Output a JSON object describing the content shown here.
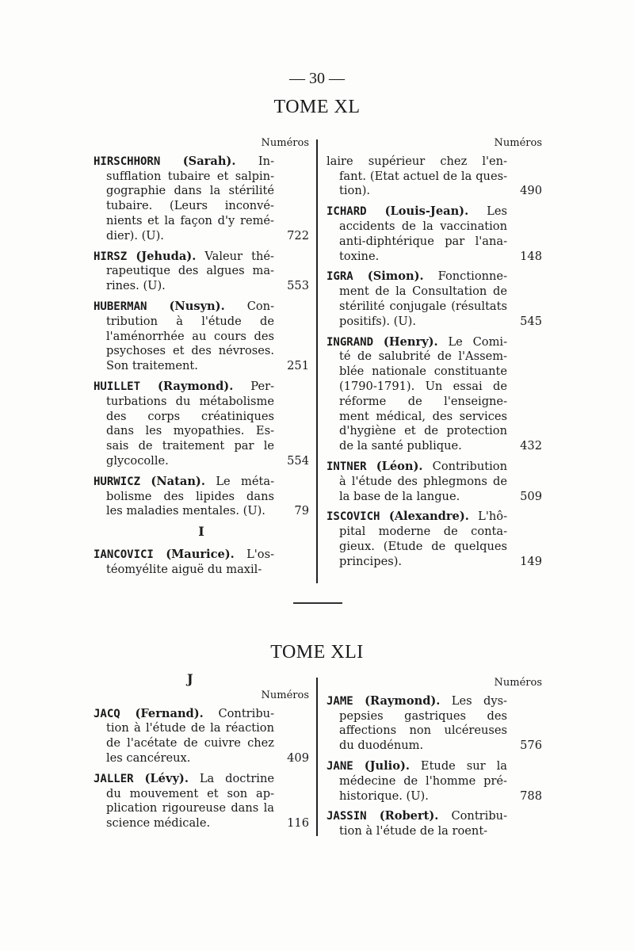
{
  "page_number": "— 30 —",
  "sections": [
    {
      "title": "TOME XL",
      "left": {
        "header": "Numéros",
        "entries": [
          {
            "name": "HIRSCHHORN",
            "given": "(Sarah).",
            "lines": [
              " In-",
              "sufflation tubaire et salpin-",
              "gographie dans la stérilité",
              "tubaire. (Leurs inconvé-",
              "nients et la façon d'y remé-",
              "dier). (U)."
            ],
            "number": "722"
          },
          {
            "name": "HIRSZ",
            "given": "(Jehuda).",
            "lines": [
              " Valeur thé-",
              "rapeutique des algues ma-",
              "rines. (U)."
            ],
            "number": "553"
          },
          {
            "name": "HUBERMAN",
            "given": "(Nusyn).",
            "lines": [
              " Con-",
              "tribution à l'étude de",
              "l'aménorrhée au cours des",
              "psychoses et des névroses.",
              "Son traitement."
            ],
            "number": "251"
          },
          {
            "name": "HUILLET",
            "given": "(Raymond).",
            "lines": [
              " Per-",
              "turbations du métabolisme",
              "des corps créatiniques",
              "dans les myopathies. Es-",
              "sais de traitement par le",
              "glycocolle."
            ],
            "number": "554"
          },
          {
            "name": "HURWICZ",
            "given": "(Natan).",
            "lines": [
              " Le méta-",
              "bolisme des lipides dans",
              "les maladies mentales. (U)."
            ],
            "number": "79"
          }
        ],
        "letter": "I",
        "after": [
          {
            "name": "IANCOVICI",
            "given": "(Maurice).",
            "lines": [
              " L'os-",
              "téomyélite aiguë du maxil-"
            ],
            "number": ""
          }
        ]
      },
      "right": {
        "header": "Numéros",
        "entries": [
          {
            "name": "",
            "given": "",
            "lines": [
              "laire supérieur chez l'en-",
              "fant. (Etat actuel de la ques-",
              "tion)."
            ],
            "number": "490"
          },
          {
            "name": "ICHARD",
            "given": "(Louis-Jean).",
            "lines": [
              " Les",
              "accidents de la vaccination",
              "anti-diphtérique par l'ana-",
              "toxine."
            ],
            "number": "148"
          },
          {
            "name": "IGRA",
            "given": "(Simon).",
            "lines": [
              " Fonctionne-",
              "ment de la Consultation de",
              "stérilité conjugale (résultats",
              "positifs). (U)."
            ],
            "number": "545"
          },
          {
            "name": "INGRAND",
            "given": "(Henry).",
            "lines": [
              " Le Comi-",
              "té de salubrité de l'Assem-",
              "blée nationale constituante",
              "(1790-1791). Un essai de",
              "réforme de l'enseigne-",
              "ment médical, des services",
              "d'hygiène et de protection",
              "de la santé publique."
            ],
            "number": "432"
          },
          {
            "name": "INTNER",
            "given": "(Léon).",
            "lines": [
              " Contribution",
              "à l'étude des phlegmons de",
              "la base de la langue."
            ],
            "number": "509"
          },
          {
            "name": "ISCOVICH",
            "given": "(Alexandre).",
            "lines": [
              " L'hô-",
              "pital moderne de conta-",
              "gieux. (Etude de quelques",
              "principes)."
            ],
            "number": "149"
          }
        ]
      }
    },
    {
      "title": "TOME XLI",
      "left": {
        "letter": "J",
        "header": "Numéros",
        "entries": [
          {
            "name": "JACQ",
            "given": "(Fernand).",
            "lines": [
              " Contribu-",
              "tion à l'étude de la réaction",
              "de l'acétate de cuivre chez",
              "les cancéreux."
            ],
            "number": "409"
          },
          {
            "name": "JALLER",
            "given": "(Lévy).",
            "lines": [
              " La doctrine",
              "du mouvement et son ap-",
              "plication rigoureuse dans la",
              "science médicale."
            ],
            "number": "116"
          }
        ]
      },
      "right": {
        "header": "Numéros",
        "entries": [
          {
            "name": "JAME",
            "given": "(Raymond).",
            "lines": [
              " Les dys-",
              "pepsies gastriques des",
              "affections non ulcéreuses",
              "du duodénum."
            ],
            "number": "576"
          },
          {
            "name": "JANE",
            "given": "(Julio).",
            "lines": [
              " Etude sur la",
              "médecine de l'homme pré-",
              "historique. (U)."
            ],
            "number": "788"
          },
          {
            "name": "JASSIN",
            "given": "(Robert).",
            "lines": [
              " Contribu-",
              "tion à l'étude de la roent-"
            ],
            "number": ""
          }
        ]
      }
    }
  ]
}
